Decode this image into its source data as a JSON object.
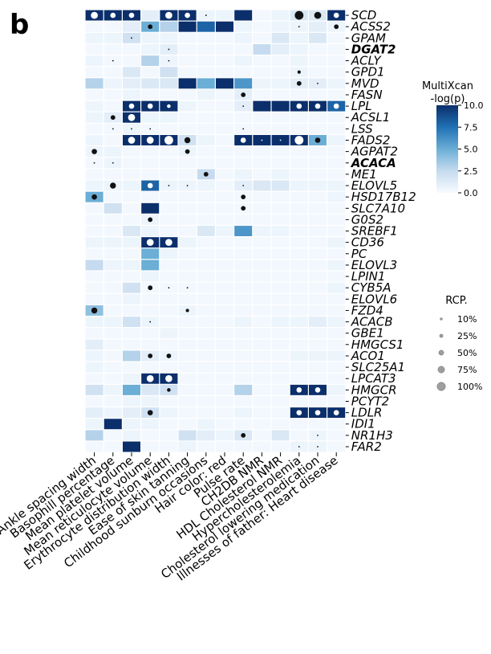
{
  "panel_label": "b",
  "chart_data": {
    "type": "heatmap",
    "genes": [
      "SCD",
      "ACSS2",
      "GPAM",
      "DGAT2",
      "ACLY",
      "GPD1",
      "MVD",
      "FASN",
      "LPL",
      "ACSL1",
      "LSS",
      "FADS2",
      "AGPAT2",
      "ACACA",
      "ME1",
      "ELOVL5",
      "HSD17B12",
      "SLC7A10",
      "G0S2",
      "SREBF1",
      "CD36",
      "PC",
      "ELOVL3",
      "LPIN1",
      "CYB5A",
      "ELOVL6",
      "FZD4",
      "ACACB",
      "GBE1",
      "HMGCS1",
      "ACO1",
      "SLC25A1",
      "LPCAT3",
      "HMGCR",
      "PCYT2",
      "LDLR",
      "IDI1",
      "NR1H3",
      "FAR2"
    ],
    "bold_genes": [
      "DGAT2",
      "ACACA"
    ],
    "traits": [
      "Ankle spacing width",
      "Basophill percentage",
      "Mean platelet volume",
      "Mean reticulocyte volume",
      "Erythrocyte distribution width",
      "Ease of skin tanning",
      "Childhood sunburn occasions",
      "Hair color: red",
      "Pulse rate",
      "CH2DB NMR",
      "HDL Cholesterol NMR",
      "Hypercholesterolemia",
      "Cholesterol lowering medication",
      "Illnesses of father: Heart disease"
    ],
    "neglog10p_matrix": [
      [
        10,
        10,
        10,
        1,
        10,
        10,
        0.5,
        0.5,
        10,
        0.2,
        0.5,
        1.5,
        1.5,
        10
      ],
      [
        0.2,
        0.2,
        1,
        5,
        3,
        10,
        8,
        10,
        0.5,
        0.2,
        0.5,
        0.5,
        1,
        0.5
      ],
      [
        0.5,
        0.5,
        2,
        0.5,
        0.5,
        0.2,
        0.2,
        0.2,
        0.5,
        0.2,
        1.5,
        0.5,
        1.5,
        0.2
      ],
      [
        0.2,
        0.2,
        0.2,
        0.5,
        1,
        0.2,
        0.2,
        0.2,
        0.2,
        2.5,
        1,
        0.5,
        0.2,
        0.2
      ],
      [
        0.5,
        0.2,
        0.2,
        3,
        0.5,
        0.2,
        0.2,
        0.2,
        0.5,
        0.2,
        0.2,
        0.5,
        0.2,
        0.2
      ],
      [
        0.2,
        0.2,
        1.5,
        0.2,
        2,
        0.2,
        0.2,
        0.2,
        0.2,
        0.2,
        0.2,
        0.5,
        0.2,
        0.2
      ],
      [
        3,
        0.5,
        1,
        1.5,
        1.5,
        10,
        5,
        10,
        6,
        0.5,
        0.5,
        1,
        1,
        0.5
      ],
      [
        0.2,
        0.2,
        0.5,
        0.2,
        0.2,
        0.2,
        0.5,
        0.2,
        1,
        0.2,
        0.2,
        0.2,
        0.2,
        0.2
      ],
      [
        0.5,
        0.2,
        10,
        10,
        10,
        0.5,
        0.2,
        0.2,
        1,
        10,
        10,
        10,
        10,
        8
      ],
      [
        0.5,
        1,
        10,
        0.5,
        0.5,
        0.2,
        0.2,
        0.2,
        0.2,
        0.2,
        0.2,
        0.2,
        0.2,
        0.2
      ],
      [
        0.2,
        0.2,
        0.5,
        0.2,
        0.2,
        0.2,
        0.2,
        0.2,
        0.2,
        0.2,
        0.2,
        0.2,
        0.2,
        0.2
      ],
      [
        0.5,
        0.2,
        10,
        10,
        10,
        2,
        0.5,
        0.2,
        10,
        10,
        10,
        10,
        5,
        0.5
      ],
      [
        0.5,
        0.5,
        0.2,
        0.2,
        0.2,
        0.5,
        0.2,
        0.2,
        0.2,
        0.2,
        0.2,
        0.2,
        0.2,
        0.2
      ],
      [
        0.2,
        0.5,
        0.2,
        0.2,
        0.2,
        0.2,
        0.2,
        0.2,
        0.2,
        0.2,
        0.2,
        0.2,
        0.2,
        0.2
      ],
      [
        0.2,
        0.2,
        0.2,
        0.2,
        0.2,
        0.2,
        2.5,
        0.2,
        0.5,
        0.2,
        0.5,
        0.2,
        0.2,
        0.2
      ],
      [
        0.5,
        0.5,
        0.5,
        8,
        0.5,
        0.5,
        0.5,
        0.2,
        1,
        1.5,
        1.5,
        0.5,
        0.5,
        0.5
      ],
      [
        5,
        0.2,
        0.2,
        0.2,
        0.2,
        0.2,
        0.2,
        0.2,
        0.2,
        0.2,
        0.2,
        0.2,
        0.2,
        0.5
      ],
      [
        0.2,
        2,
        0.2,
        10,
        0.2,
        0.2,
        0.2,
        0.2,
        0.2,
        0.2,
        0.2,
        0.2,
        0.2,
        0.2
      ],
      [
        0.2,
        0.2,
        0.2,
        0.5,
        0.2,
        0.2,
        0.2,
        0.2,
        0.2,
        0.2,
        0.2,
        0.2,
        0.2,
        0.2
      ],
      [
        0.2,
        0.2,
        1.5,
        0.5,
        0.2,
        0.2,
        1.5,
        0.5,
        6,
        0.5,
        0.5,
        0.2,
        0.2,
        0.2
      ],
      [
        0.5,
        0.5,
        0.5,
        10,
        10,
        0.5,
        0.2,
        0.2,
        0.2,
        0.2,
        0.2,
        0.2,
        0.2,
        0.5
      ],
      [
        0.2,
        0.2,
        0.2,
        5,
        0.5,
        0.2,
        0.2,
        0.2,
        0.2,
        0.2,
        0.2,
        0.2,
        0.2,
        0.2
      ],
      [
        2.5,
        0.5,
        0.5,
        5,
        0.2,
        0.2,
        0.2,
        0.2,
        0.2,
        0.2,
        0.2,
        0.2,
        0.2,
        0.5
      ],
      [
        0.2,
        0.2,
        0.2,
        0.5,
        0.2,
        0.2,
        0.2,
        0.2,
        0.2,
        0.2,
        0.2,
        0.2,
        0.2,
        0.2
      ],
      [
        0.2,
        0.2,
        2,
        0.2,
        0.2,
        0.2,
        0.2,
        0.2,
        0.2,
        0.2,
        0.2,
        0.2,
        0.2,
        0.5
      ],
      [
        0.2,
        0.2,
        0.5,
        0.2,
        0.2,
        0.2,
        0.2,
        0.2,
        0.2,
        0.2,
        0.2,
        0.2,
        0.2,
        0.2
      ],
      [
        4,
        0.2,
        0.2,
        0.2,
        0.2,
        0.5,
        0.2,
        0.2,
        0.2,
        0.2,
        0.2,
        0.2,
        0.2,
        0.2
      ],
      [
        0.5,
        0.5,
        2,
        0.5,
        0.2,
        0.2,
        0.2,
        0.2,
        0.5,
        0.2,
        0.5,
        0.5,
        1,
        0.5
      ],
      [
        0.2,
        0.2,
        0.2,
        0.2,
        0.5,
        0.2,
        0.2,
        0.2,
        0.2,
        0.2,
        0.2,
        0.2,
        0.2,
        0.2
      ],
      [
        1,
        0.2,
        0.2,
        0.2,
        0.2,
        0.2,
        0.2,
        0.2,
        0.2,
        0.2,
        0.2,
        0.2,
        0.2,
        0.2
      ],
      [
        0.5,
        0.2,
        3,
        1,
        0.5,
        0.2,
        0.2,
        0.2,
        0.2,
        0.2,
        0.2,
        0.5,
        0.5,
        0.5
      ],
      [
        0.5,
        0.2,
        0.2,
        0.2,
        0.2,
        0.2,
        0.2,
        0.2,
        0.2,
        0.2,
        0.2,
        0.2,
        0.2,
        0.2
      ],
      [
        0.2,
        0.2,
        0.5,
        10,
        10,
        0.2,
        0.2,
        0.2,
        0.2,
        0.2,
        0.2,
        0.2,
        0.2,
        0.2
      ],
      [
        2,
        0.5,
        5,
        1.5,
        2,
        0.2,
        0.2,
        0.2,
        3,
        0.2,
        0.2,
        10,
        10,
        0.5
      ],
      [
        0.2,
        0.2,
        0.5,
        0.5,
        0.2,
        0.2,
        0.2,
        0.2,
        0.2,
        0.2,
        0.2,
        0.2,
        0.2,
        0.2
      ],
      [
        1,
        0.5,
        1,
        2,
        0.5,
        0.2,
        0.2,
        0.2,
        0.5,
        0.2,
        0.2,
        10,
        10,
        10
      ],
      [
        0.5,
        10,
        0.5,
        0.5,
        0.2,
        0.2,
        0.5,
        0.2,
        0.2,
        0.2,
        0.2,
        0.2,
        0.2,
        0.2
      ],
      [
        3,
        0.2,
        0.5,
        0.2,
        0.2,
        2,
        1,
        0.5,
        1.5,
        0.2,
        1.5,
        0.2,
        0.5,
        0.2
      ],
      [
        0.2,
        0.2,
        10,
        0.2,
        0.2,
        0.5,
        0.2,
        0.2,
        0.2,
        0.2,
        0.2,
        0.5,
        0.5,
        0.2
      ]
    ],
    "rcp_dots": [
      [
        0,
        0,
        0.75
      ],
      [
        0,
        1,
        0.5
      ],
      [
        0,
        2,
        0.5
      ],
      [
        0,
        4,
        0.75
      ],
      [
        0,
        5,
        0.5
      ],
      [
        0,
        6,
        0.05
      ],
      [
        0,
        11,
        1
      ],
      [
        0,
        12,
        0.75
      ],
      [
        0,
        13,
        0.5
      ],
      [
        1,
        3,
        0.4
      ],
      [
        1,
        11,
        0.05
      ],
      [
        1,
        13,
        0.4
      ],
      [
        2,
        2,
        0.05
      ],
      [
        3,
        4,
        0.05
      ],
      [
        4,
        1,
        0.05
      ],
      [
        4,
        4,
        0.05
      ],
      [
        5,
        11,
        0.2
      ],
      [
        6,
        11,
        0.4
      ],
      [
        6,
        12,
        0.05
      ],
      [
        7,
        8,
        0.4
      ],
      [
        8,
        2,
        0.5
      ],
      [
        8,
        3,
        0.5
      ],
      [
        8,
        4,
        0.25
      ],
      [
        8,
        8,
        0.05
      ],
      [
        8,
        11,
        0.5
      ],
      [
        8,
        12,
        0.5
      ],
      [
        8,
        13,
        0.5
      ],
      [
        9,
        1,
        0.4
      ],
      [
        9,
        2,
        0.75
      ],
      [
        10,
        1,
        0.05
      ],
      [
        10,
        2,
        0.05
      ],
      [
        10,
        3,
        0.05
      ],
      [
        10,
        8,
        0.05
      ],
      [
        11,
        2,
        0.75
      ],
      [
        11,
        3,
        0.75
      ],
      [
        11,
        4,
        1
      ],
      [
        11,
        5,
        0.6
      ],
      [
        11,
        8,
        0.5
      ],
      [
        11,
        9,
        0.05
      ],
      [
        11,
        10,
        0.05
      ],
      [
        11,
        11,
        1
      ],
      [
        11,
        12,
        0.5
      ],
      [
        12,
        0,
        0.5
      ],
      [
        12,
        5,
        0.4
      ],
      [
        13,
        0,
        0.05
      ],
      [
        13,
        1,
        0.05
      ],
      [
        14,
        6,
        0.4
      ],
      [
        15,
        1,
        0.6
      ],
      [
        15,
        3,
        0.5
      ],
      [
        15,
        4,
        0.05
      ],
      [
        15,
        5,
        0.05
      ],
      [
        15,
        8,
        0.05
      ],
      [
        16,
        0,
        0.5
      ],
      [
        16,
        8,
        0.4
      ],
      [
        17,
        8,
        0.4
      ],
      [
        18,
        3,
        0.4
      ],
      [
        20,
        3,
        0.75
      ],
      [
        20,
        4,
        0.75
      ],
      [
        24,
        3,
        0.4
      ],
      [
        24,
        4,
        0.05
      ],
      [
        24,
        5,
        0.05
      ],
      [
        26,
        0,
        0.6
      ],
      [
        26,
        5,
        0.2
      ],
      [
        27,
        3,
        0.05
      ],
      [
        30,
        3,
        0.4
      ],
      [
        30,
        4,
        0.4
      ],
      [
        32,
        3,
        0.75
      ],
      [
        32,
        4,
        0.75
      ],
      [
        33,
        4,
        0.25
      ],
      [
        33,
        11,
        0.5
      ],
      [
        33,
        12,
        0.5
      ],
      [
        35,
        3,
        0.5
      ],
      [
        35,
        11,
        0.5
      ],
      [
        35,
        12,
        0.5
      ],
      [
        35,
        13,
        0.5
      ],
      [
        37,
        8,
        0.4
      ],
      [
        37,
        12,
        0.05
      ],
      [
        38,
        11,
        0.05
      ],
      [
        38,
        12,
        0.05
      ]
    ],
    "colorbar": {
      "title_line1": "MultiXcan",
      "title_line2": "-log(p)",
      "min": 0.0,
      "max": 10.0,
      "ticks": [
        "10.0",
        "7.5",
        "5.0",
        "2.5",
        "0.0"
      ],
      "color_low": "#f7fbff",
      "color_high": "#0b2f6b"
    },
    "size_legend": {
      "title": "RCP.",
      "entries": [
        {
          "label": "10%",
          "value": 0.1
        },
        {
          "label": "25%",
          "value": 0.25
        },
        {
          "label": "50%",
          "value": 0.5
        },
        {
          "label": "75%",
          "value": 0.75
        },
        {
          "label": "100%",
          "value": 1.0
        }
      ]
    }
  }
}
